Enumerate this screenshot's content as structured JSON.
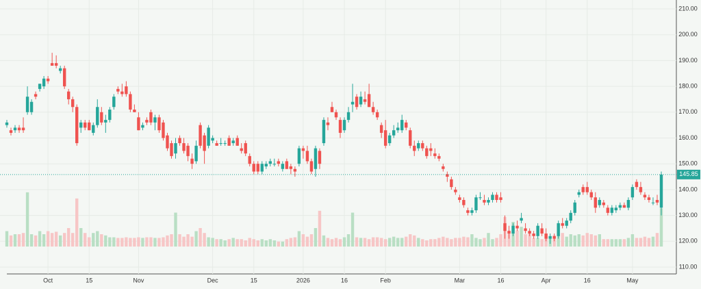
{
  "chart_data": {
    "type": "candlestick",
    "categories": [
      null,
      null,
      null,
      null,
      null,
      null,
      null,
      null,
      null,
      null,
      "Oct",
      null,
      null,
      null,
      null,
      null,
      null,
      null,
      null,
      null,
      "15",
      null,
      null,
      null,
      null,
      null,
      null,
      null,
      null,
      null,
      null,
      null,
      "Nov",
      null,
      null,
      null,
      null,
      null,
      null,
      null,
      null,
      null,
      null,
      null,
      null,
      null,
      null,
      null,
      null,
      null,
      "Dec",
      null,
      null,
      null,
      null,
      null,
      null,
      null,
      null,
      null,
      "15",
      null,
      null,
      null,
      null,
      null,
      null,
      null,
      null,
      null,
      null,
      null,
      "2026",
      null,
      null,
      null,
      null,
      null,
      null,
      null,
      null,
      null,
      "16",
      null,
      null,
      null,
      null,
      null,
      null,
      null,
      null,
      null,
      "Feb",
      null,
      null,
      null,
      null,
      null,
      null,
      null,
      null,
      null,
      null,
      null,
      null,
      null,
      null,
      null,
      null,
      null,
      "Mar",
      null,
      null,
      null,
      null,
      null,
      null,
      null,
      null,
      null,
      "16",
      null,
      null,
      null,
      null,
      null,
      null,
      null,
      null,
      null,
      null,
      "Apr",
      null,
      null,
      null,
      null,
      null,
      null,
      null,
      null,
      null,
      "16",
      null,
      null,
      null,
      null,
      null,
      null,
      null,
      null,
      null,
      null,
      "May",
      null,
      null,
      null,
      null,
      null,
      null,
      null
    ],
    "open": [
      165,
      163,
      163,
      164,
      164,
      170,
      170,
      177,
      179,
      180,
      183,
      189,
      189,
      186,
      187,
      178,
      175,
      172,
      164,
      166,
      166,
      162,
      165,
      170,
      166,
      167,
      172,
      179,
      178,
      180,
      177,
      171,
      168,
      164,
      167,
      170,
      166,
      168,
      166,
      161,
      158,
      154,
      160,
      158,
      157,
      152,
      151,
      165,
      161,
      157,
      159,
      158,
      158,
      158,
      160,
      158,
      160,
      156,
      158,
      153,
      150,
      150,
      147,
      149,
      150,
      150,
      151,
      148,
      151,
      149,
      148,
      150,
      156,
      155,
      151,
      148,
      155,
      158,
      166,
      172,
      170,
      167,
      163,
      167,
      173,
      176,
      173,
      175,
      177,
      172,
      170,
      165,
      163,
      158,
      161,
      163,
      163,
      166,
      163,
      157,
      156,
      158,
      156,
      156,
      154,
      153,
      149,
      146,
      144,
      140,
      137,
      136,
      132,
      131,
      132,
      137,
      136,
      135,
      136,
      138,
      137,
      127,
      124,
      123,
      126,
      128,
      125,
      124,
      123,
      122,
      125,
      123,
      121,
      122,
      122,
      127,
      126,
      128,
      131,
      138,
      141,
      141,
      139,
      137,
      134,
      135,
      133,
      131,
      132,
      133,
      134,
      133,
      137,
      143,
      141,
      138,
      137,
      135,
      136,
      133
    ],
    "high": [
      167,
      164,
      165,
      165,
      168,
      180,
      175,
      178,
      181,
      184,
      184,
      193,
      192,
      188,
      188,
      179,
      176,
      173,
      167,
      167,
      167,
      166,
      175,
      172,
      169,
      172,
      177,
      180,
      181,
      182,
      178,
      173,
      170,
      166,
      168,
      171,
      169,
      169,
      167,
      162,
      159,
      160,
      161,
      160,
      158,
      154,
      159,
      166,
      162,
      165,
      161,
      159,
      160,
      159,
      161,
      160,
      161,
      158,
      159,
      154,
      151,
      151,
      151,
      151,
      152,
      152,
      152,
      151,
      152,
      150,
      149,
      157,
      157,
      157,
      152,
      157,
      156,
      168,
      168,
      174,
      171,
      168,
      168,
      172,
      181,
      177,
      178,
      178,
      181,
      174,
      171,
      166,
      167,
      162,
      165,
      166,
      169,
      167,
      164,
      159,
      159,
      159,
      157,
      158,
      156,
      154,
      150,
      147,
      145,
      141,
      138,
      137,
      133,
      133,
      138,
      139,
      138,
      137,
      139,
      139,
      139,
      130,
      126,
      127,
      128,
      131,
      127,
      125,
      124,
      127,
      127,
      125,
      123,
      123,
      128,
      129,
      129,
      132,
      136,
      140,
      142,
      143,
      140,
      139,
      137,
      136,
      134,
      134,
      134,
      135,
      135,
      137,
      142,
      144,
      143,
      139,
      138,
      137,
      138,
      147
    ],
    "low": [
      164,
      161,
      162,
      162,
      162,
      169,
      169,
      175,
      178,
      179,
      181,
      188,
      187,
      185,
      179,
      173,
      170,
      157,
      162,
      163,
      163,
      161,
      164,
      165,
      162,
      166,
      171,
      177,
      176,
      176,
      170,
      170,
      163,
      163,
      165,
      165,
      163,
      162,
      159,
      155,
      152,
      152,
      157,
      154,
      151,
      148,
      150,
      156,
      150,
      156,
      158,
      157,
      157,
      157,
      157,
      157,
      157,
      154,
      153,
      149,
      146,
      146,
      146,
      148,
      149,
      149,
      149,
      147,
      148,
      146,
      145,
      149,
      152,
      150,
      146,
      145,
      148,
      157,
      163,
      170,
      167,
      160,
      162,
      166,
      170,
      171,
      172,
      173,
      172,
      169,
      167,
      160,
      156,
      157,
      160,
      162,
      162,
      163,
      156,
      153,
      155,
      155,
      152,
      153,
      152,
      151,
      147,
      143,
      140,
      138,
      135,
      133,
      130,
      130,
      131,
      136,
      134,
      134,
      135,
      135,
      135,
      121,
      121,
      122,
      124,
      127,
      123,
      122,
      121,
      121,
      122,
      120,
      119,
      120,
      121,
      125,
      125,
      127,
      130,
      137,
      138,
      138,
      136,
      131,
      133,
      133,
      130,
      130,
      131,
      132,
      133,
      132,
      136,
      140,
      138,
      136,
      135,
      134,
      134,
      130
    ],
    "close": [
      166,
      162,
      164,
      163,
      163,
      176,
      174,
      176,
      181,
      183,
      182,
      188,
      188,
      187,
      180,
      175,
      172,
      158,
      166,
      164,
      163,
      165,
      172,
      166,
      167,
      171,
      176,
      178,
      177,
      177,
      171,
      170,
      163,
      165,
      166,
      166,
      168,
      163,
      160,
      156,
      153,
      158,
      158,
      155,
      153,
      150,
      157,
      157,
      155,
      164,
      160,
      157,
      158,
      158,
      157,
      159,
      157,
      155,
      154,
      150,
      147,
      147,
      150,
      150,
      151,
      150,
      150,
      150,
      148,
      148,
      147,
      156,
      155,
      151,
      147,
      156,
      150,
      167,
      165,
      170,
      168,
      162,
      167,
      170,
      174,
      172,
      176,
      174,
      172,
      170,
      168,
      162,
      157,
      161,
      163,
      164,
      167,
      164,
      157,
      155,
      158,
      156,
      153,
      155,
      153,
      152,
      148,
      145,
      141,
      139,
      136,
      134,
      131,
      132,
      137,
      137,
      135,
      136,
      138,
      136,
      136,
      124,
      123,
      126,
      125,
      129,
      124,
      123,
      122,
      126,
      123,
      121,
      122,
      121,
      127,
      126,
      128,
      131,
      135,
      139,
      139,
      139,
      137,
      133,
      136,
      134,
      131,
      133,
      133,
      134,
      133,
      136,
      141,
      141,
      139,
      137,
      136,
      135,
      135,
      145.85
    ],
    "volume": [
      25,
      18,
      20,
      20,
      22,
      88,
      20,
      18,
      25,
      20,
      25,
      22,
      24,
      18,
      22,
      30,
      22,
      78,
      30,
      22,
      15,
      22,
      25,
      20,
      18,
      15,
      15,
      14,
      14,
      15,
      14,
      14,
      15,
      14,
      15,
      15,
      14,
      14,
      15,
      18,
      20,
      55,
      20,
      16,
      20,
      16,
      25,
      30,
      22,
      15,
      14,
      12,
      12,
      10,
      12,
      14,
      12,
      12,
      10,
      14,
      12,
      10,
      12,
      10,
      12,
      10,
      8,
      8,
      12,
      14,
      15,
      25,
      20,
      16,
      20,
      30,
      58,
      18,
      14,
      12,
      14,
      12,
      15,
      20,
      55,
      15,
      14,
      14,
      12,
      15,
      15,
      14,
      12,
      14,
      16,
      14,
      14,
      16,
      20,
      18,
      14,
      12,
      10,
      12,
      12,
      14,
      16,
      14,
      12,
      14,
      14,
      16,
      15,
      20,
      14,
      12,
      14,
      22,
      12,
      14,
      20,
      48,
      26,
      40,
      26,
      32,
      20,
      24,
      14,
      14,
      12,
      16,
      14,
      18,
      20,
      22,
      16,
      20,
      18,
      20,
      18,
      22,
      20,
      18,
      20,
      12,
      12,
      12,
      12,
      12,
      12,
      14,
      20,
      14,
      14,
      16,
      14,
      16,
      22,
      62
    ],
    "ylim": [
      110,
      210
    ],
    "volume_lim": [
      0,
      100
    ],
    "yticks": [
      {
        "value": 110,
        "label": "110.00"
      },
      {
        "value": 120,
        "label": "120.00"
      },
      {
        "value": 130,
        "label": "130.00"
      },
      {
        "value": 140,
        "label": "140.00"
      },
      {
        "value": 150,
        "label": "150.00"
      },
      {
        "value": 160,
        "label": "160.00"
      },
      {
        "value": 170,
        "label": "170.00"
      },
      {
        "value": 180,
        "label": "180.00"
      },
      {
        "value": 190,
        "label": "190.00"
      },
      {
        "value": 200,
        "label": "200.00"
      },
      {
        "value": 210,
        "label": "210.00"
      }
    ],
    "up_color": "#26a69a",
    "down_color": "#ef5350",
    "volume_up_color": "#b9dfc4",
    "volume_down_color": "#f7c6c6",
    "grid": true
  }
}
